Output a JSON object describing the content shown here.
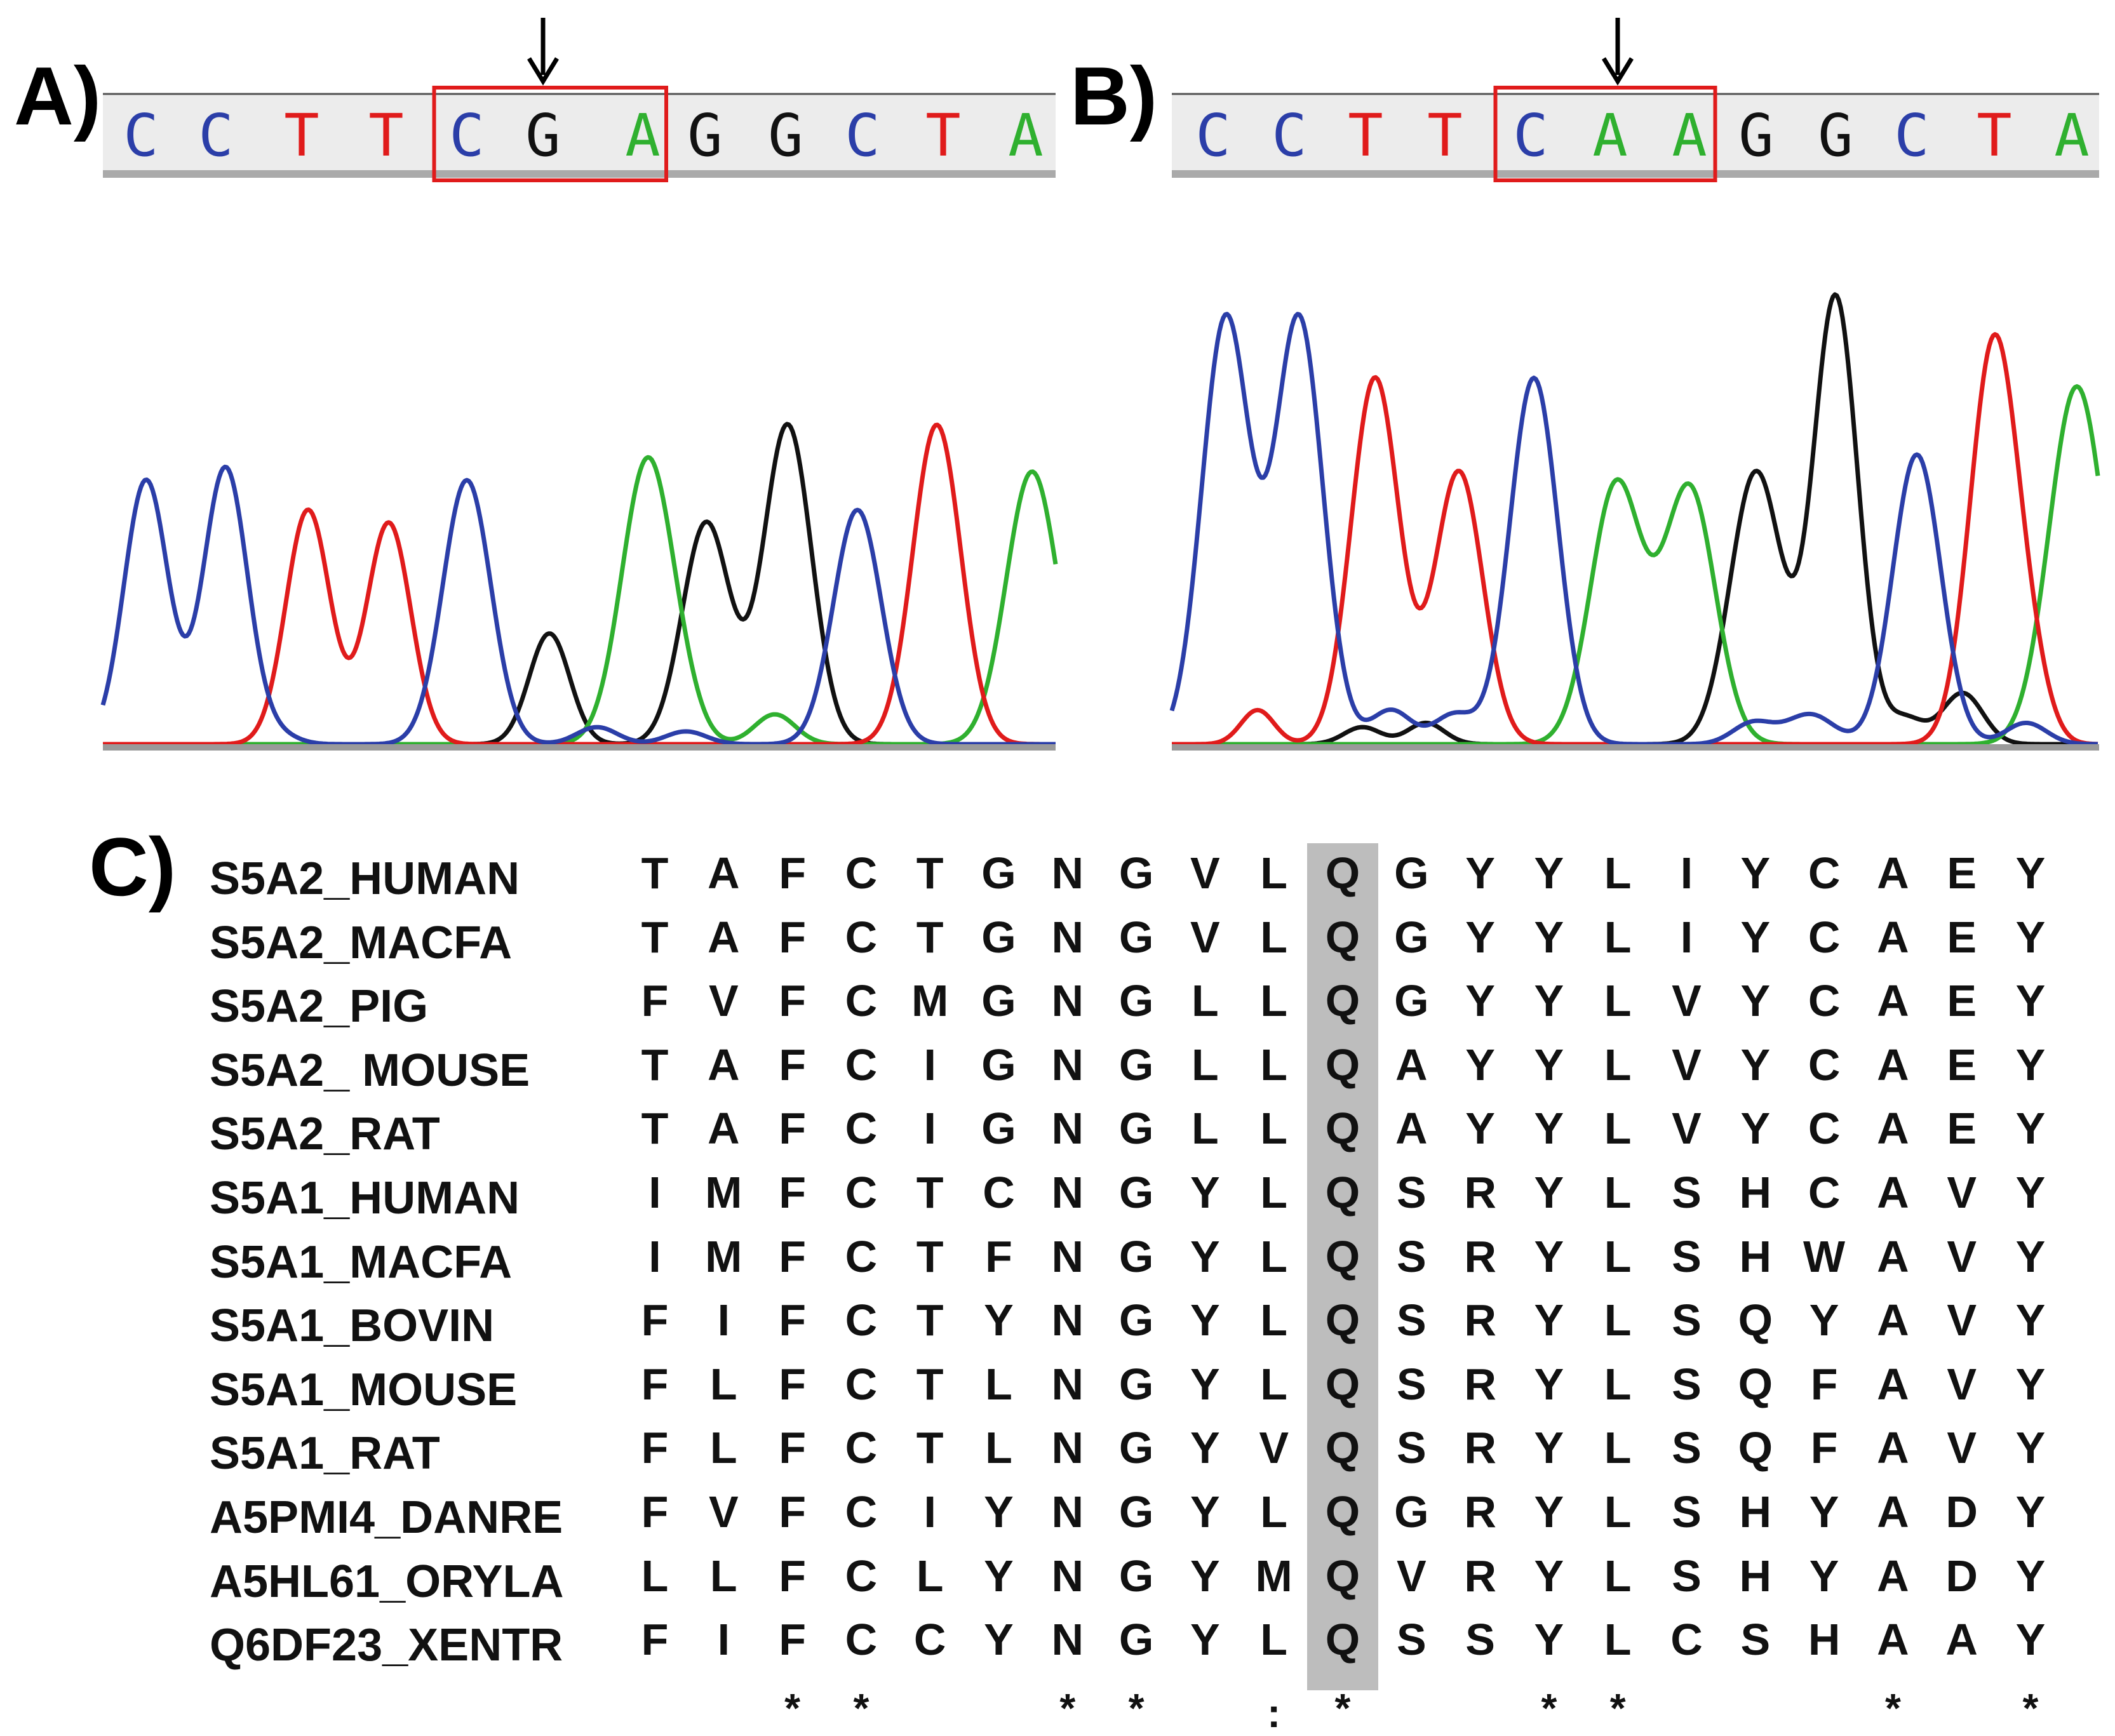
{
  "panels": {
    "a": {
      "label": "A)",
      "sequence": [
        "C",
        "C",
        "T",
        "T",
        "C",
        "G",
        "A",
        "G",
        "G",
        "C",
        "T",
        "A"
      ],
      "boxed_range": [
        4,
        6
      ],
      "arrow_index": 5
    },
    "b": {
      "label": "B)",
      "sequence": [
        "C",
        "C",
        "T",
        "T",
        "C",
        "A",
        "A",
        "G",
        "G",
        "C",
        "T",
        "A"
      ],
      "boxed_range": [
        4,
        6
      ],
      "arrow_index": 5
    },
    "c": {
      "label": "C)",
      "rows": [
        {
          "name": "S5A2_HUMAN",
          "residues": "TAFCTGNGVLQGYYLIYCAEY"
        },
        {
          "name": "S5A2_MACFA",
          "residues": "TAFCTGNGVLQGYYLIYCAEY"
        },
        {
          "name": "S5A2_PIG",
          "residues": "FVFCMGNGLLQGYYLVYCAEY"
        },
        {
          "name": "S5A2_ MOUSE",
          "residues": "TAFCIGNGLLQAYYLVYCAEY"
        },
        {
          "name": "S5A2_RAT",
          "residues": "TAFCIGNGLLQAYYLVYCAEY"
        },
        {
          "name": "S5A1_HUMAN",
          "residues": "IMFCTCNGYLQSRYLSHCAVY"
        },
        {
          "name": "S5A1_MACFA",
          "residues": "IMFCTFNGYLQSRYLSHWAVY"
        },
        {
          "name": "S5A1_BOVIN",
          "residues": "FIFCTYNGYLQSRYLSQYAVY"
        },
        {
          "name": "S5A1_MOUSE",
          "residues": "FLFCTLNGYLQSRYLSQFAVY"
        },
        {
          "name": "S5A1_RAT",
          "residues": "FLFCTLNGYVQSRYLSQFAVY"
        },
        {
          "name": "A5PMI4_DANRE",
          "residues": "FVFCIYNGYLQGRYLSHYADY"
        },
        {
          "name": "A5HL61_ORYLA",
          "residues": "LLFCLYNGYMQVRYLSHYADY"
        },
        {
          "name": "Q6DF23_XENTR",
          "residues": "FIFCCYNGYLQSSYLCSHAAY"
        }
      ],
      "conservation": [
        "",
        "",
        "*",
        "*",
        "",
        "",
        "*",
        "*",
        "",
        ":",
        "*",
        "",
        "",
        "*",
        "*",
        "",
        "",
        "",
        "*",
        "",
        "*"
      ],
      "highlight_column": 10
    }
  },
  "colors": {
    "A": "#2fb02f",
    "C": "#2b3ea8",
    "G": "#111111",
    "T": "#e01b1b",
    "box": "#e01b1b",
    "highlight": "#bdbdbd"
  }
}
